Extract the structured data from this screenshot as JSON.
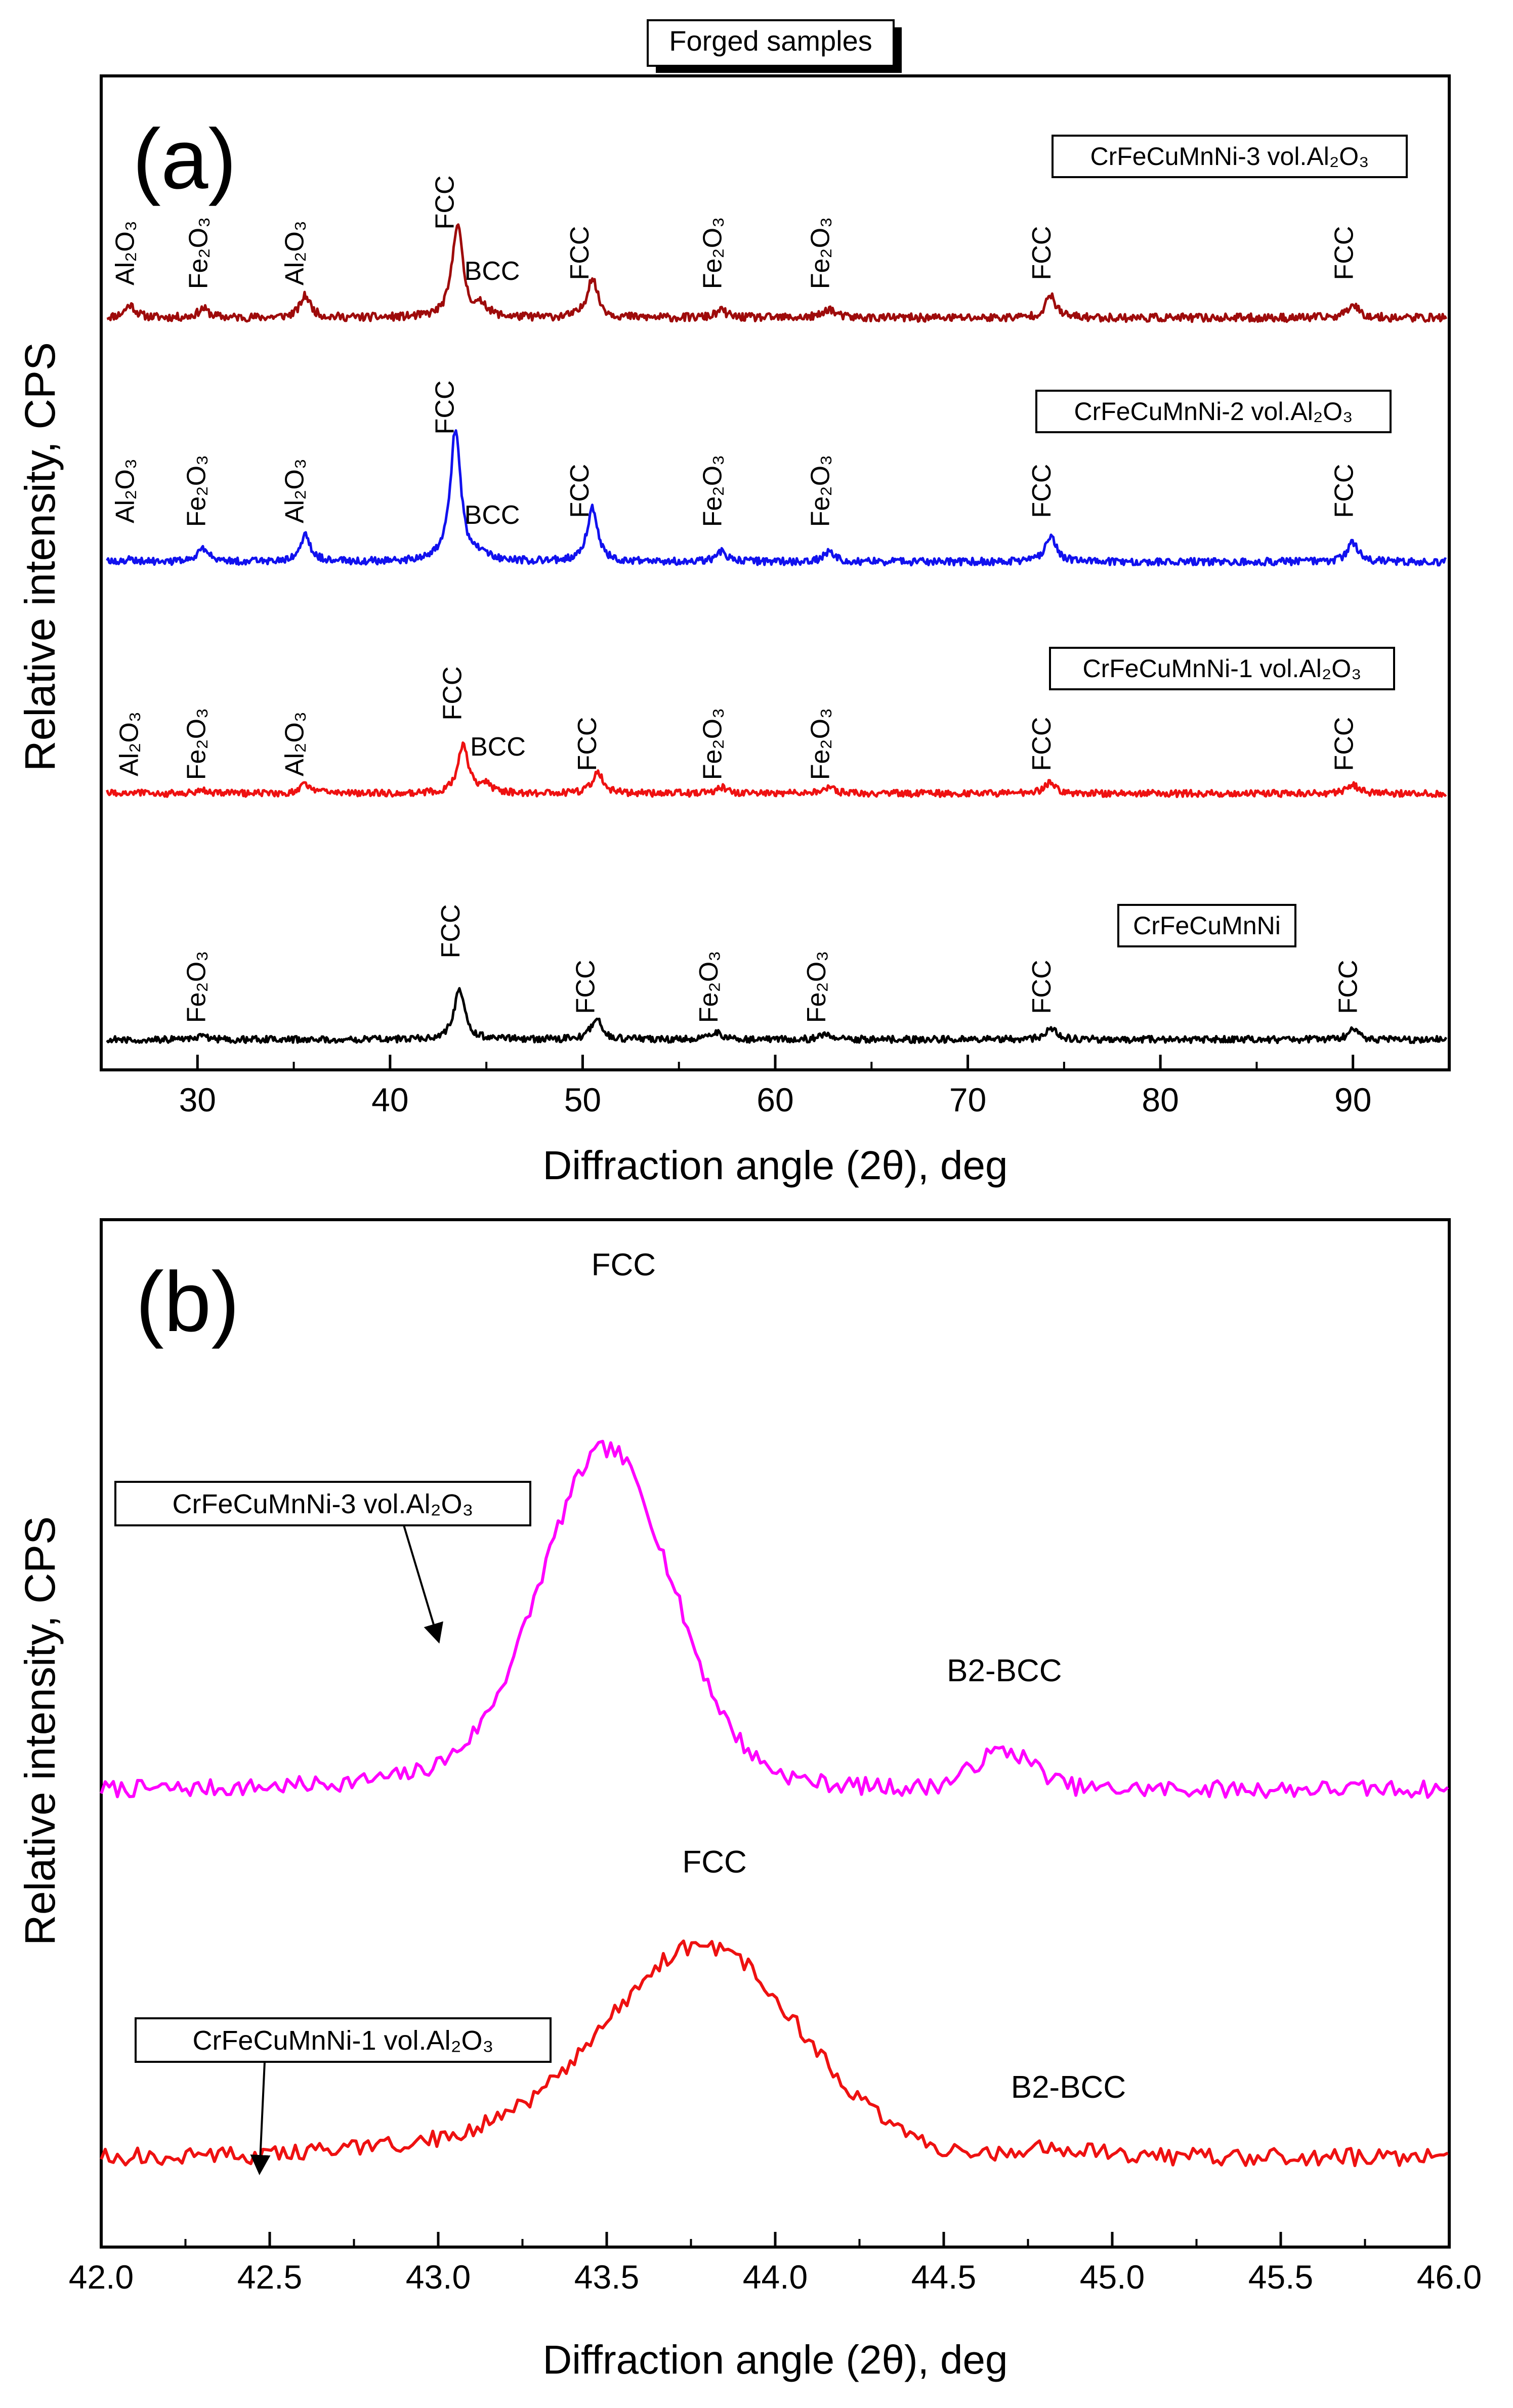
{
  "header": {
    "label": "Forged samples"
  },
  "colors": {
    "black": "#000000",
    "red": "#ee1111",
    "blue": "#1111ee",
    "darkred": "#9e0b0b",
    "magenta": "#ff00ff"
  },
  "chart_data": [
    {
      "panel": "(a)",
      "type": "line",
      "xlabel": "Diffraction angle (2θ), deg",
      "ylabel": "Relative intensity, CPS",
      "xlim": [
        25,
        95
      ],
      "x_ticks": [
        30,
        40,
        50,
        60,
        70,
        80,
        90
      ],
      "y_ticks_shown": false,
      "series": [
        {
          "name": "CrFeCuMnNi-3 vol.Al2O3",
          "legend": "CrFeCuMnNi-3 vol.Al₂O₃",
          "color": "#9e0b0b",
          "peaks": [
            [
              26.5,
              0.07
            ],
            [
              30.3,
              0.05
            ],
            [
              35.6,
              0.12
            ],
            [
              43.5,
              0.52
            ],
            [
              44.8,
              0.06
            ],
            [
              50.5,
              0.22
            ],
            [
              57.2,
              0.04
            ],
            [
              62.8,
              0.05
            ],
            [
              74.3,
              0.12
            ],
            [
              90.0,
              0.08
            ]
          ],
          "annotations": [
            {
              "x": 26.7,
              "text": "Al₂O₃"
            },
            {
              "x": 30.5,
              "text": "Fe₂O₃"
            },
            {
              "x": 35.5,
              "text": "Al₂O₃"
            },
            {
              "x": 43.3,
              "text": "FCC"
            },
            {
              "x": 45.3,
              "text": "BCC",
              "horizontal": true
            },
            {
              "x": 50.3,
              "text": "FCC"
            },
            {
              "x": 57.2,
              "text": "Fe₂O₃"
            },
            {
              "x": 62.8,
              "text": "Fe₂O₃"
            },
            {
              "x": 74.3,
              "text": "FCC"
            },
            {
              "x": 90.0,
              "text": "FCC"
            }
          ]
        },
        {
          "name": "CrFeCuMnNi-2 vol.Al2O3",
          "legend": "CrFeCuMnNi-2 vol.Al₂O₃",
          "color": "#1111ee",
          "peaks": [
            [
              26.5,
              0.02
            ],
            [
              30.3,
              0.08
            ],
            [
              35.6,
              0.16
            ],
            [
              43.4,
              0.82
            ],
            [
              44.8,
              0.04
            ],
            [
              50.5,
              0.33
            ],
            [
              57.2,
              0.06
            ],
            [
              62.8,
              0.06
            ],
            [
              74.3,
              0.16
            ],
            [
              90.0,
              0.12
            ]
          ],
          "annotations": [
            {
              "x": 26.7,
              "text": "Al₂O₃"
            },
            {
              "x": 30.4,
              "text": "Fe₂O₃"
            },
            {
              "x": 35.5,
              "text": "Al₂O₃"
            },
            {
              "x": 43.3,
              "text": "FCC"
            },
            {
              "x": 45.3,
              "text": "BCC",
              "horizontal": true
            },
            {
              "x": 50.3,
              "text": "FCC"
            },
            {
              "x": 57.2,
              "text": "Fe₂O₃"
            },
            {
              "x": 62.8,
              "text": "Fe₂O₃"
            },
            {
              "x": 74.3,
              "text": "FCC"
            },
            {
              "x": 90.0,
              "text": "FCC"
            }
          ]
        },
        {
          "name": "CrFeCuMnNi-1 vol.Al2O3",
          "legend": "CrFeCuMnNi-1 vol.Al₂O₃",
          "color": "#ee1111",
          "peaks": [
            [
              26.5,
              0.01
            ],
            [
              30.3,
              0.02
            ],
            [
              35.6,
              0.06
            ],
            [
              43.8,
              0.32
            ],
            [
              45.0,
              0.05
            ],
            [
              50.8,
              0.14
            ],
            [
              57.2,
              0.04
            ],
            [
              62.8,
              0.04
            ],
            [
              74.3,
              0.08
            ],
            [
              90.0,
              0.06
            ]
          ],
          "annotations": [
            {
              "x": 26.9,
              "text": "Al₂O₃"
            },
            {
              "x": 30.4,
              "text": "Fe₂O₃"
            },
            {
              "x": 35.5,
              "text": "Al₂O₃"
            },
            {
              "x": 43.7,
              "text": "FCC"
            },
            {
              "x": 45.6,
              "text": "BCC",
              "horizontal": true
            },
            {
              "x": 50.7,
              "text": "FCC"
            },
            {
              "x": 57.2,
              "text": "Fe₂O₃"
            },
            {
              "x": 62.8,
              "text": "Fe₂O₃"
            },
            {
              "x": 74.3,
              "text": "FCC"
            },
            {
              "x": 90.0,
              "text": "FCC"
            }
          ]
        },
        {
          "name": "CrFeCuMnNi",
          "legend": "CrFeCuMnNi",
          "color": "#000000",
          "peaks": [
            [
              30.3,
              0.02
            ],
            [
              43.6,
              0.33
            ],
            [
              50.7,
              0.14
            ],
            [
              57.0,
              0.04
            ],
            [
              62.6,
              0.04
            ],
            [
              74.3,
              0.08
            ],
            [
              90.0,
              0.06
            ]
          ],
          "annotations": [
            {
              "x": 30.4,
              "text": "Fe₂O₃"
            },
            {
              "x": 43.6,
              "text": "FCC"
            },
            {
              "x": 50.6,
              "text": "FCC"
            },
            {
              "x": 57.0,
              "text": "Fe₂O₃"
            },
            {
              "x": 62.6,
              "text": "Fe₂O₃"
            },
            {
              "x": 74.3,
              "text": "FCC"
            },
            {
              "x": 90.2,
              "text": "FCC"
            }
          ]
        }
      ]
    },
    {
      "panel": "(b)",
      "type": "line",
      "xlabel": "Diffraction angle (2θ), deg",
      "ylabel": "Relative intensity, CPS",
      "xlim": [
        42.0,
        46.0
      ],
      "x_ticks": [
        "42.0",
        "42.5",
        "43.0",
        "43.5",
        "44.0",
        "44.5",
        "45.0",
        "45.5",
        "46.0"
      ],
      "y_ticks_shown": false,
      "series": [
        {
          "name": "CrFeCuMnNi-3 vol.Al2O3",
          "legend": "CrFeCuMnNi-3 vol.Al₂O₃",
          "color": "#ff00ff",
          "peaks": [
            [
              43.5,
              1.0
            ],
            [
              44.68,
              0.12
            ]
          ],
          "annotations": [
            {
              "x": 43.55,
              "text": "FCC"
            },
            {
              "x": 44.68,
              "text": "B2-BCC"
            }
          ]
        },
        {
          "name": "CrFeCuMnNi-1 vol.Al2O3",
          "legend": "CrFeCuMnNi-1 vol.Al₂O₃",
          "color": "#ee1111",
          "peaks": [
            [
              43.8,
              0.62
            ],
            [
              44.85,
              0.03
            ]
          ],
          "annotations": [
            {
              "x": 43.82,
              "text": "FCC"
            },
            {
              "x": 44.87,
              "text": "B2-BCC"
            }
          ]
        }
      ]
    }
  ]
}
